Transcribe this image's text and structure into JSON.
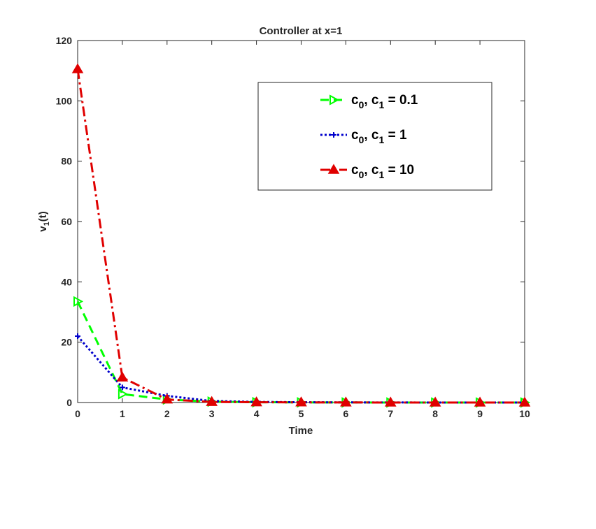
{
  "chart_data": {
    "type": "line",
    "title": "Controller at x=1",
    "xlabel": "Time",
    "ylabel_main": "v",
    "ylabel_sub": "1",
    "ylabel_suffix": "(t)",
    "xlim": [
      0,
      10
    ],
    "ylim": [
      0,
      120
    ],
    "xticks": [
      "0",
      "1",
      "2",
      "3",
      "4",
      "5",
      "6",
      "7",
      "8",
      "9",
      "10"
    ],
    "yticks": [
      "0",
      "20",
      "40",
      "60",
      "80",
      "100",
      "120"
    ],
    "legend_position": "top-right",
    "x": [
      0,
      1,
      2,
      3,
      4,
      5,
      6,
      7,
      8,
      9,
      10
    ],
    "series": [
      {
        "key": "s01",
        "label_a": "c",
        "sub_a": "0",
        "label_b": ", c",
        "sub_b": "1",
        "label_c": " = 0.1",
        "color": "#00ff00",
        "dash": "dashed",
        "marker": "triangle-right",
        "values": [
          33.5,
          2.8,
          1.0,
          0.3,
          0.1,
          0.05,
          0.02,
          0.01,
          0.0,
          0.0,
          0.0
        ]
      },
      {
        "key": "s1",
        "label_a": "c",
        "sub_a": "0",
        "label_b": ", c",
        "sub_b": "1",
        "label_c": " = 1",
        "color": "#0000cc",
        "dash": "dotted",
        "marker": "plus",
        "values": [
          22.0,
          5.0,
          2.2,
          0.5,
          0.2,
          0.1,
          0.05,
          0.02,
          0.01,
          0.0,
          0.0
        ]
      },
      {
        "key": "s10",
        "label_a": "c",
        "sub_a": "0",
        "label_b": ", c",
        "sub_b": "1",
        "label_c": " = 10",
        "color": "#e00000",
        "dash": "dashdot",
        "marker": "triangle-up",
        "values": [
          110.5,
          8.3,
          1.0,
          0.2,
          0.1,
          0.05,
          0.02,
          0.01,
          0.0,
          0.0,
          0.0
        ]
      }
    ]
  }
}
